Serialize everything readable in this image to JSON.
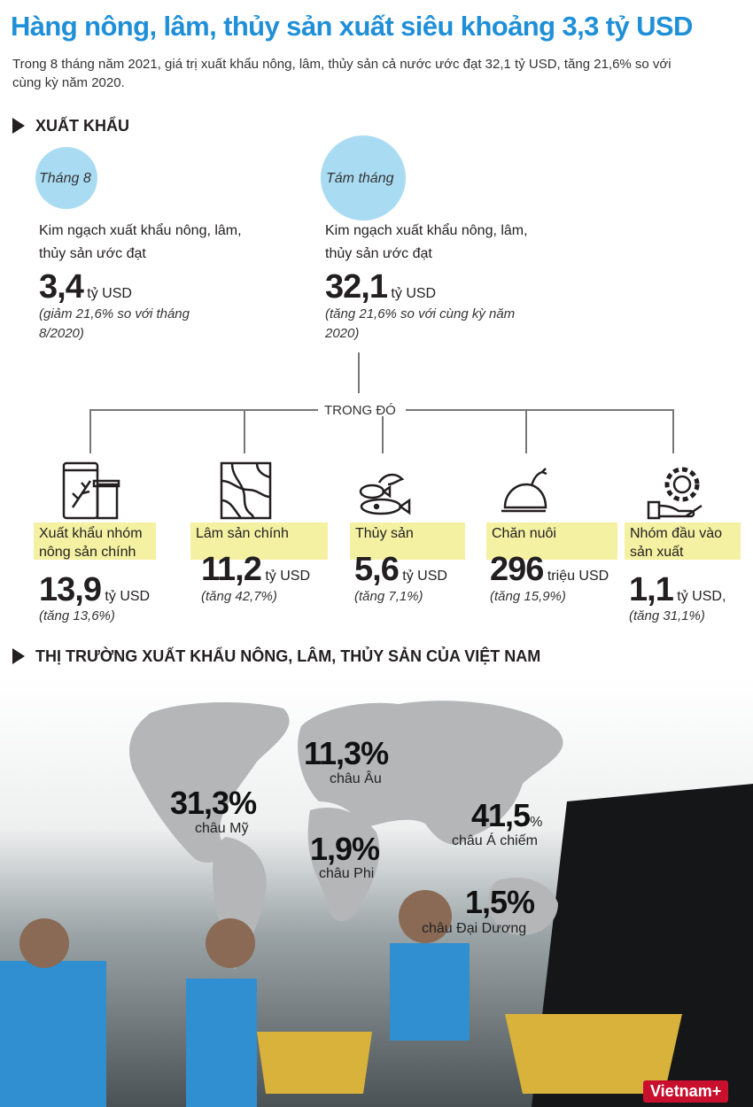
{
  "header": {
    "title": "Hàng nông, lâm, thủy sản xuất siêu khoảng 3,3 tỷ USD",
    "intro": "Trong 8 tháng năm 2021, giá trị xuất khẩu nông, lâm, thủy sản cả nước ước đạt 32,1 tỷ USD, tăng 21,6% so với cùng kỳ năm 2020."
  },
  "export": {
    "heading": "XUẤT KHẨU",
    "summary": [
      {
        "period": "Tháng 8",
        "description": "Kim ngạch xuất khẩu nông, lâm, thủy sản ước đạt",
        "value": "3,4",
        "unit": "tỷ USD",
        "note": "(giảm 21,6% so với tháng 8/2020)"
      },
      {
        "period": "Tám tháng",
        "description": "Kim ngạch xuất khẩu nông, lâm, thủy sản ước đạt",
        "value": "32,1",
        "unit": "tỷ USD",
        "note": "(tăng 21,6% so với cùng kỳ năm 2020)"
      }
    ],
    "breakdown_label": "TRONG ĐÓ",
    "groups": [
      {
        "name": "Xuất khẩu nhóm nông sản chính",
        "value": "13,9",
        "unit": "tỷ USD",
        "note": "(tăng 13,6%)"
      },
      {
        "name": "Lâm sản chính",
        "value": "11,2",
        "unit": "tỷ USD",
        "note": "(tăng 42,7%)"
      },
      {
        "name": "Thủy sản",
        "value": "5,6",
        "unit": "tỷ USD",
        "note": "(tăng 7,1%)"
      },
      {
        "name": "Chăn nuôi",
        "value": "296",
        "unit": "triệu USD",
        "note": "(tăng 15,9%)"
      },
      {
        "name": "Nhóm đầu vào sản xuất",
        "value": "1,1",
        "unit": "tỷ USD,",
        "note": "(tăng 31,1%)"
      }
    ]
  },
  "markets": {
    "heading": "THỊ TRƯỜNG XUẤT KHẨU NÔNG, LÂM, THỦY SẢN CỦA VIỆT NAM",
    "items": [
      {
        "share": "11,3%",
        "region": "châu Âu"
      },
      {
        "share": "31,3%",
        "region": "châu Mỹ"
      },
      {
        "share": "1,9%",
        "region": "châu Phi"
      },
      {
        "share": "41,5",
        "suffix": "%",
        "region": "châu Á chiếm"
      },
      {
        "share": "1,5%",
        "region": "châu Đại Dương"
      }
    ]
  },
  "footer": {
    "logo": "Vietnam+"
  }
}
